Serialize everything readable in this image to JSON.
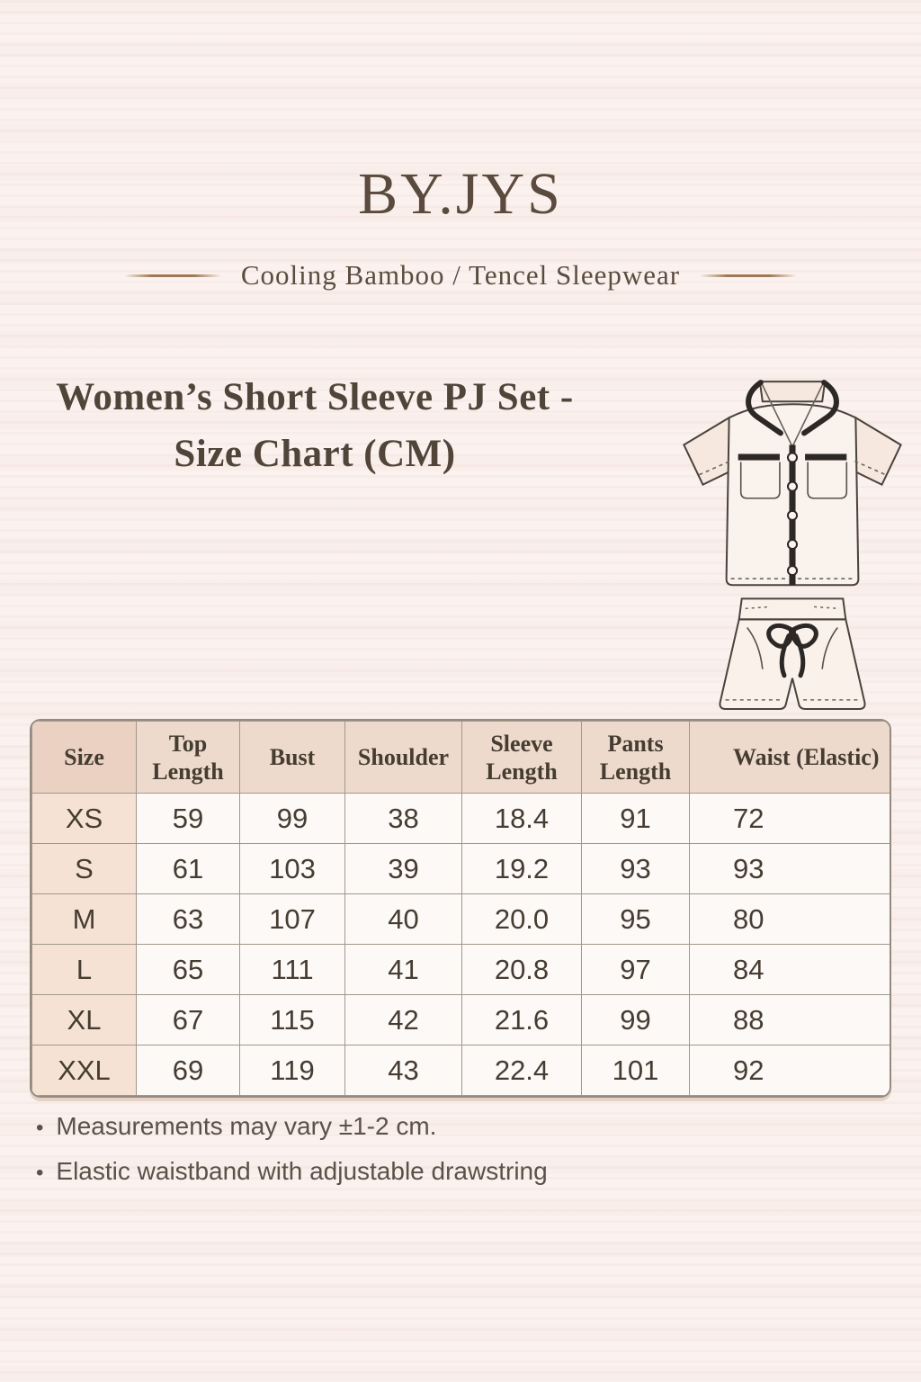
{
  "brand": {
    "name": "BY.JYS",
    "tagline": "Cooling Bamboo / Tencel Sleepwear"
  },
  "heading": {
    "line1": "Women’s Short Sleeve PJ Set  -",
    "line2": "Size Chart (CM)"
  },
  "illustration": {
    "description": "line drawing of women's short sleeve pajama shirt and shorts with drawstring"
  },
  "size_chart": {
    "columns": [
      "Size",
      "Top Length",
      "Bust",
      "Shoulder",
      "Sleeve Length",
      "Pants Length",
      "Waist (Elastic)"
    ],
    "rows": [
      {
        "size": "XS",
        "values": [
          "59",
          "99",
          "38",
          "18.4",
          "91",
          "72"
        ]
      },
      {
        "size": "S",
        "values": [
          "61",
          "103",
          "39",
          "19.2",
          "93",
          "93"
        ]
      },
      {
        "size": "M",
        "values": [
          "63",
          "107",
          "40",
          "20.0",
          "95",
          "80"
        ]
      },
      {
        "size": "L",
        "values": [
          "65",
          "111",
          "41",
          "20.8",
          "97",
          "84"
        ]
      },
      {
        "size": "XL",
        "values": [
          "67",
          "115",
          "42",
          "21.6",
          "99",
          "88"
        ]
      },
      {
        "size": "XXL",
        "values": [
          "69",
          "119",
          "43",
          "22.4",
          "101",
          "92"
        ]
      }
    ]
  },
  "notes": [
    "Measurements may vary ±1-2 cm.",
    "Elastic waistband with adjustable drawstring"
  ],
  "colors": {
    "background": "#fbf2ef",
    "header_bg": "#eedacc",
    "size_column_bg": "#f5e2d4",
    "cell_bg": "#fdf9f6",
    "table_border": "#9e948a",
    "text": "#4e4236",
    "trim_black": "#2c2825",
    "rule_gold": "#9d7a55"
  }
}
